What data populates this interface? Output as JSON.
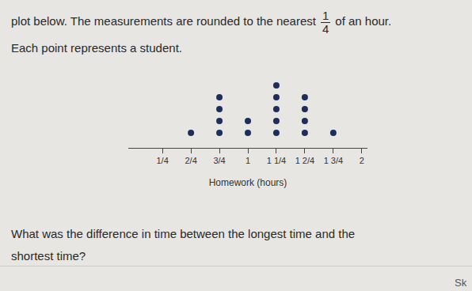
{
  "intro": {
    "before": "plot below. The measurements are rounded to the nearest",
    "fraction": {
      "numerator": "1",
      "denominator": "4"
    },
    "after": "of an hour."
  },
  "note": "Each point represents a student.",
  "question": [
    "What was the difference in time between the longest time and the",
    "shortest time?"
  ],
  "corner": "Sk",
  "chart_data": {
    "type": "dot",
    "x_label": "Homework (hours)",
    "x": [
      0.5,
      0.75,
      1,
      1.25,
      1.5,
      1.75
    ],
    "values": [
      1,
      4,
      2,
      5,
      4,
      1
    ],
    "color": "#1f2d5c",
    "xlim": [
      -0.05,
      2.05
    ],
    "xticks": [
      {
        "value": 0.25,
        "label": "1/4"
      },
      {
        "value": 0.5,
        "label": "2/4"
      },
      {
        "value": 0.75,
        "label": "3/4"
      },
      1,
      {
        "value": 1.25,
        "label": "1 1/4"
      },
      {
        "value": 1.5,
        "label": "1 2/4"
      },
      {
        "value": 1.75,
        "label": "1 3/4"
      },
      2
    ],
    "grid": false,
    "tick_labels": "x"
  }
}
